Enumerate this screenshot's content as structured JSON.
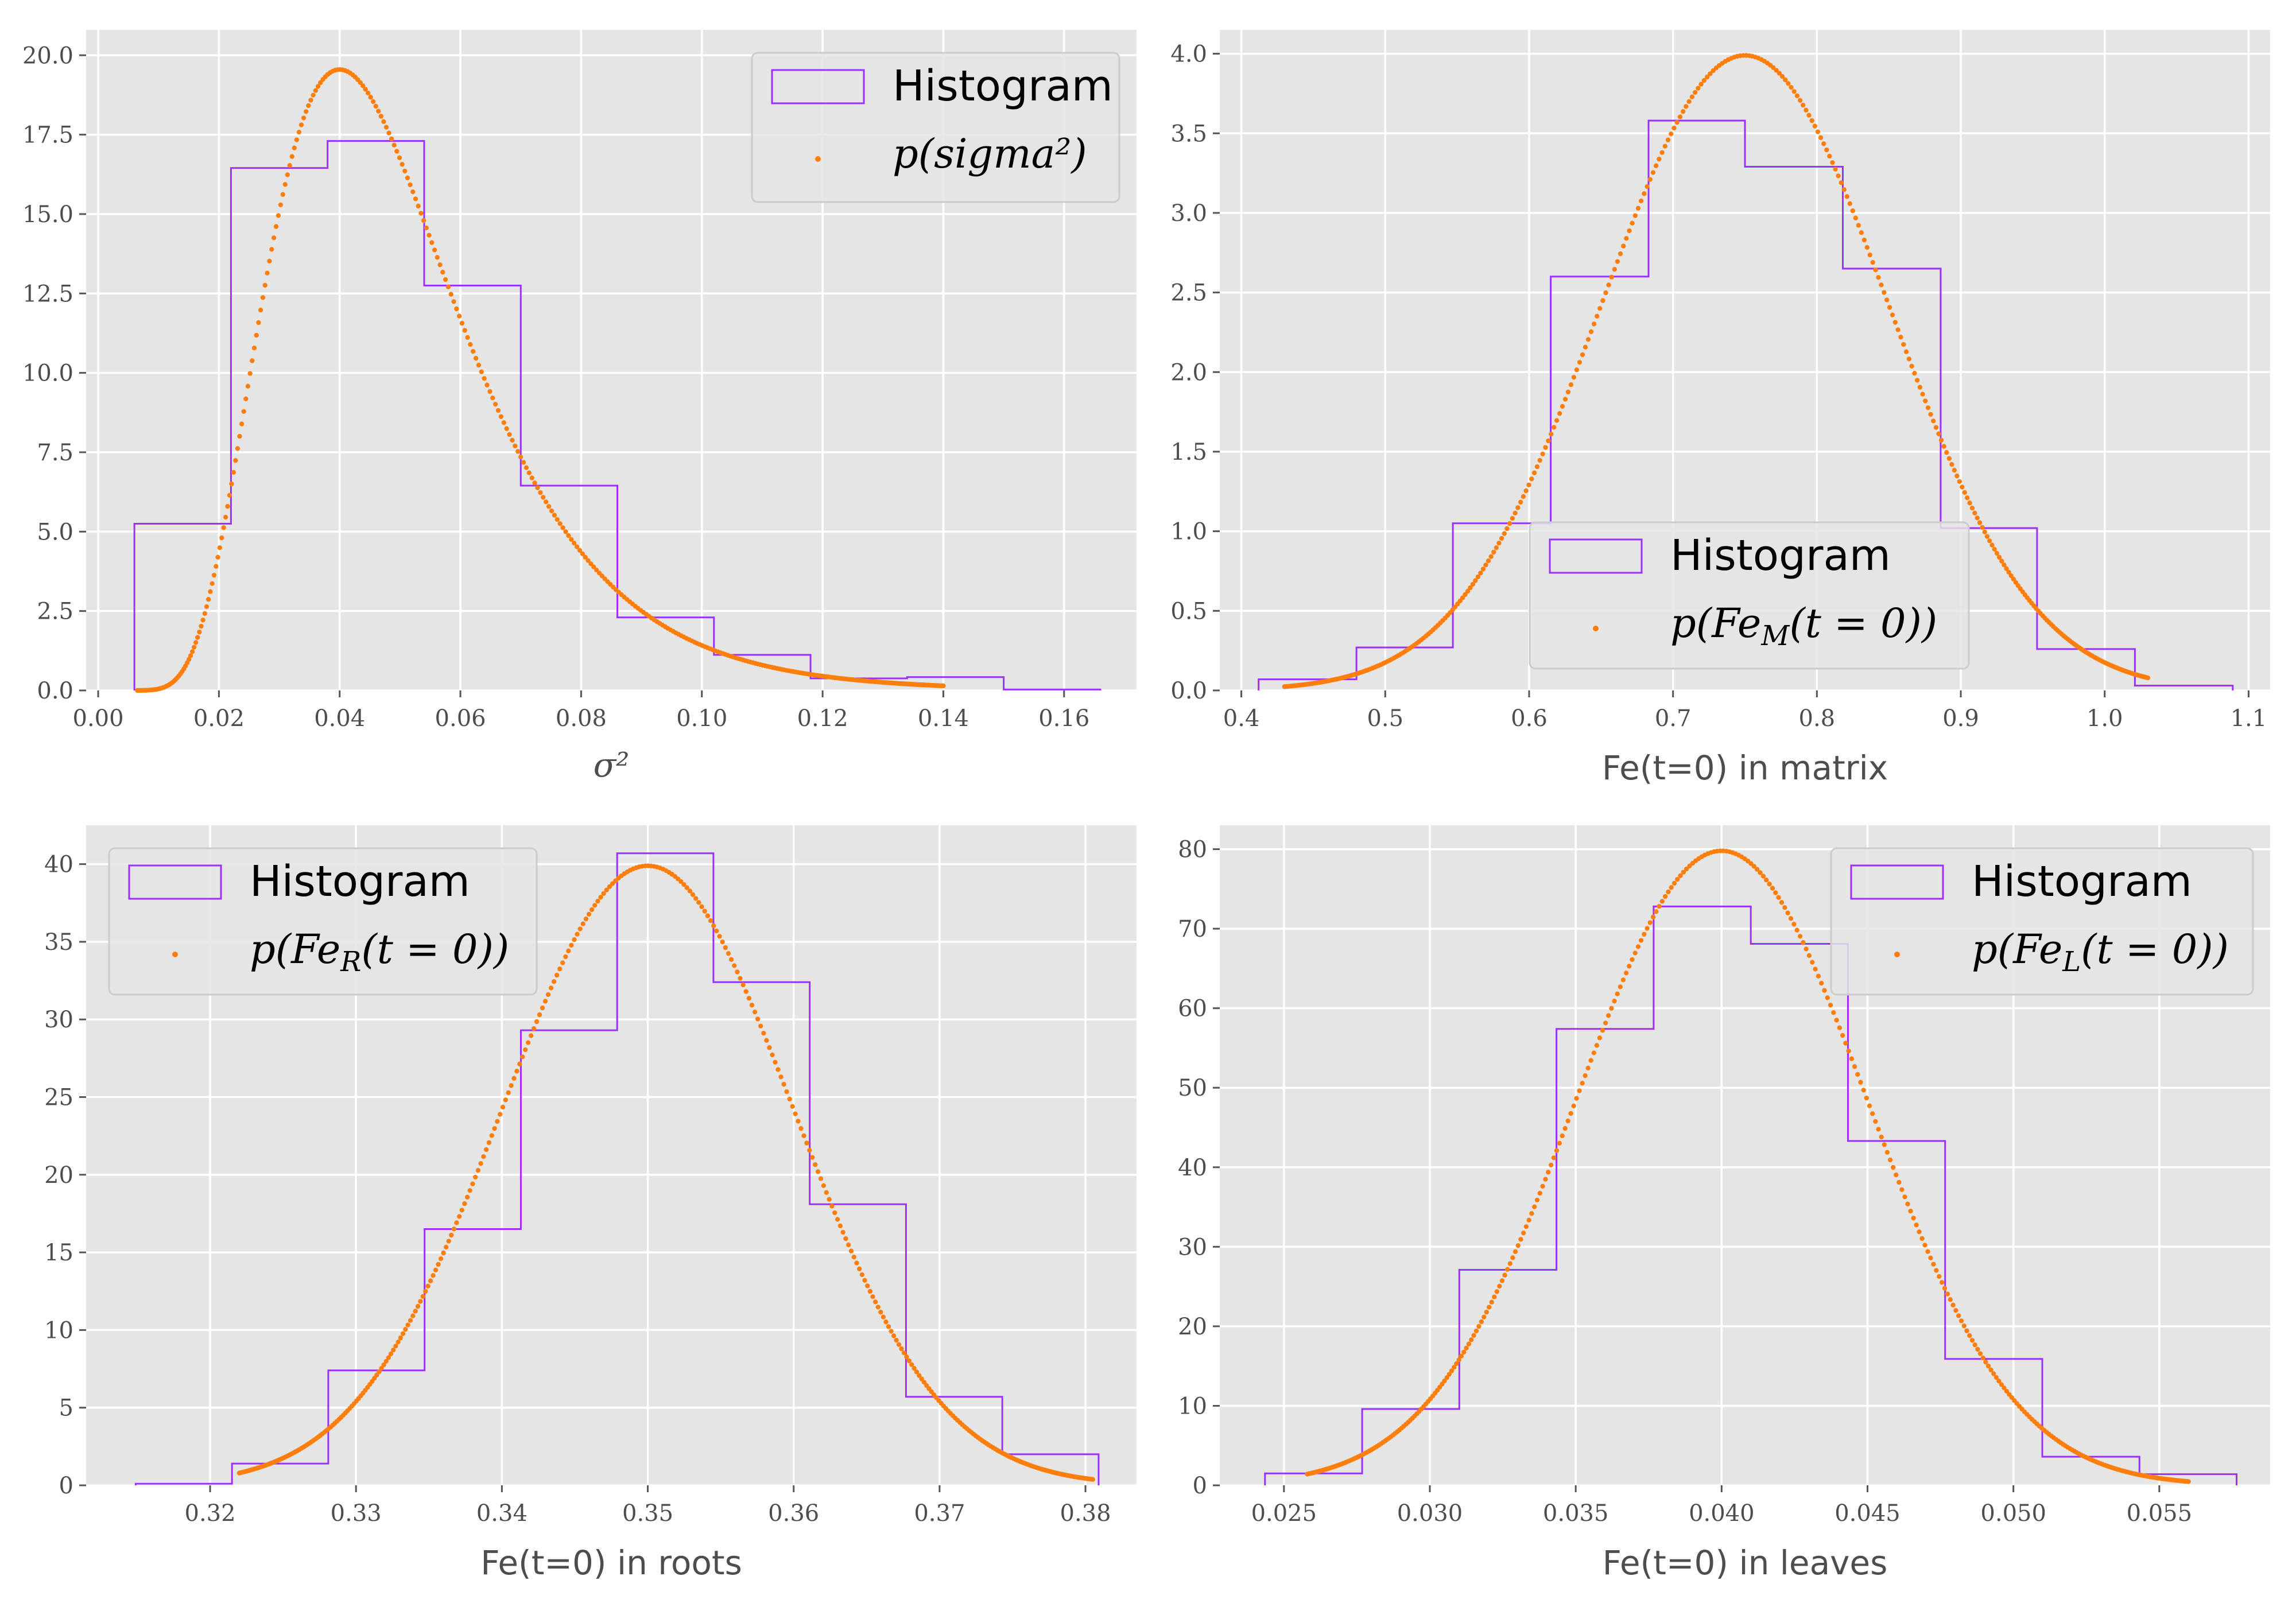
{
  "colors": {
    "panel_bg": "#e5e5e5",
    "grid": "#ffffff",
    "histogram": "#9b30ff",
    "pdf": "#ff7f0e",
    "tick_text": "#4d4d4d"
  },
  "chart_data": [
    {
      "type": "histogram",
      "id": "sigma2",
      "xlabel": "σ²",
      "ylabel": "",
      "title": "",
      "xlim": [
        -0.002,
        0.172
      ],
      "ylim": [
        0,
        20.8
      ],
      "xticks": [
        0.0,
        0.02,
        0.04,
        0.06,
        0.08,
        0.1,
        0.12,
        0.14,
        0.16
      ],
      "xtick_labels": [
        "0.00",
        "0.02",
        "0.04",
        "0.06",
        "0.08",
        "0.10",
        "0.12",
        "0.14",
        "0.16"
      ],
      "yticks": [
        0,
        2.5,
        5,
        7.5,
        10,
        12.5,
        15,
        17.5,
        20
      ],
      "ytick_labels": [
        "0.0",
        "2.5",
        "5.0",
        "7.5",
        "10.0",
        "12.5",
        "15.0",
        "17.5",
        "20.0"
      ],
      "legend_position": "top-right",
      "legend": {
        "histogram": "Histogram",
        "pdf": "p(sigma²)"
      },
      "histogram": {
        "edges": [
          0.006,
          0.022,
          0.038,
          0.054,
          0.07,
          0.086,
          0.102,
          0.118,
          0.134,
          0.15,
          0.166
        ],
        "heights": [
          5.25,
          16.45,
          17.3,
          12.75,
          6.45,
          2.3,
          1.12,
          0.38,
          0.42,
          0.03
        ]
      },
      "pdf": {
        "shape": "lognormal",
        "peak_x": 0.04,
        "peak_y": 19.55,
        "x_range": [
          0.0065,
          0.14
        ]
      }
    },
    {
      "type": "histogram",
      "id": "fe_matrix",
      "xlabel": "Fe(t=0) in matrix",
      "ylabel": "",
      "title": "",
      "xlim": [
        0.385,
        1.115
      ],
      "ylim": [
        0,
        4.15
      ],
      "xticks": [
        0.4,
        0.5,
        0.6,
        0.7,
        0.8,
        0.9,
        1.0,
        1.1
      ],
      "xtick_labels": [
        "0.4",
        "0.5",
        "0.6",
        "0.7",
        "0.8",
        "0.9",
        "1.0",
        "1.1"
      ],
      "yticks": [
        0,
        0.5,
        1.0,
        1.5,
        2.0,
        2.5,
        3.0,
        3.5,
        4.0
      ],
      "ytick_labels": [
        "0.0",
        "0.5",
        "1.0",
        "1.5",
        "2.0",
        "2.5",
        "3.0",
        "3.5",
        "4.0"
      ],
      "legend_position": "lower-center",
      "legend": {
        "histogram": "Histogram",
        "pdf": "p(Fe_M(t = 0))"
      },
      "histogram": {
        "edges": [
          0.412,
          0.48,
          0.547,
          0.615,
          0.683,
          0.75,
          0.818,
          0.886,
          0.953,
          1.021,
          1.089
        ],
        "heights": [
          0.07,
          0.27,
          1.05,
          2.6,
          3.58,
          3.29,
          2.65,
          1.02,
          0.26,
          0.03
        ]
      },
      "pdf": {
        "shape": "normal",
        "mean": 0.75,
        "std": 0.1,
        "x_range": [
          0.43,
          1.03
        ]
      }
    },
    {
      "type": "histogram",
      "id": "fe_roots",
      "xlabel": "Fe(t=0) in roots",
      "ylabel": "",
      "title": "",
      "xlim": [
        0.3115,
        0.3835
      ],
      "ylim": [
        0,
        42.5
      ],
      "xticks": [
        0.32,
        0.33,
        0.34,
        0.35,
        0.36,
        0.37,
        0.38
      ],
      "xtick_labels": [
        "0.32",
        "0.33",
        "0.34",
        "0.35",
        "0.36",
        "0.37",
        "0.38"
      ],
      "yticks": [
        0,
        5,
        10,
        15,
        20,
        25,
        30,
        35,
        40
      ],
      "ytick_labels": [
        "0",
        "5",
        "10",
        "15",
        "20",
        "25",
        "30",
        "35",
        "40"
      ],
      "legend_position": "top-left",
      "legend": {
        "histogram": "Histogram",
        "pdf": "p(Fe_R(t = 0))"
      },
      "histogram": {
        "edges": [
          0.3149,
          0.3215,
          0.3281,
          0.3347,
          0.3413,
          0.3479,
          0.3545,
          0.3611,
          0.3677,
          0.3743,
          0.3809
        ],
        "heights": [
          0.1,
          1.4,
          7.4,
          16.5,
          29.3,
          40.7,
          32.4,
          18.1,
          5.7,
          2.0
        ]
      },
      "pdf": {
        "shape": "normal",
        "mean": 0.35,
        "std": 0.01,
        "x_range": [
          0.322,
          0.3805
        ]
      }
    },
    {
      "type": "histogram",
      "id": "fe_leaves",
      "xlabel": "Fe(t=0) in leaves",
      "ylabel": "",
      "title": "",
      "xlim": [
        0.0228,
        0.0588
      ],
      "ylim": [
        0,
        83
      ],
      "xticks": [
        0.025,
        0.03,
        0.035,
        0.04,
        0.045,
        0.05,
        0.055
      ],
      "xtick_labels": [
        "0.025",
        "0.030",
        "0.035",
        "0.040",
        "0.045",
        "0.050",
        "0.055"
      ],
      "yticks": [
        0,
        10,
        20,
        30,
        40,
        50,
        60,
        70,
        80
      ],
      "ytick_labels": [
        "0",
        "10",
        "20",
        "30",
        "40",
        "50",
        "60",
        "70",
        "80"
      ],
      "legend_position": "top-right",
      "legend": {
        "histogram": "Histogram",
        "pdf": "p(Fe_L(t = 0))"
      },
      "histogram": {
        "edges": [
          0.02435,
          0.02768,
          0.03101,
          0.03434,
          0.03767,
          0.041,
          0.04433,
          0.04766,
          0.05099,
          0.05432,
          0.05765
        ],
        "heights": [
          1.5,
          9.6,
          27.1,
          57.4,
          72.8,
          68.1,
          43.3,
          15.9,
          3.6,
          1.4
        ]
      },
      "pdf": {
        "shape": "normal",
        "mean": 0.04,
        "std": 0.005,
        "x_range": [
          0.0258,
          0.056
        ]
      }
    }
  ]
}
